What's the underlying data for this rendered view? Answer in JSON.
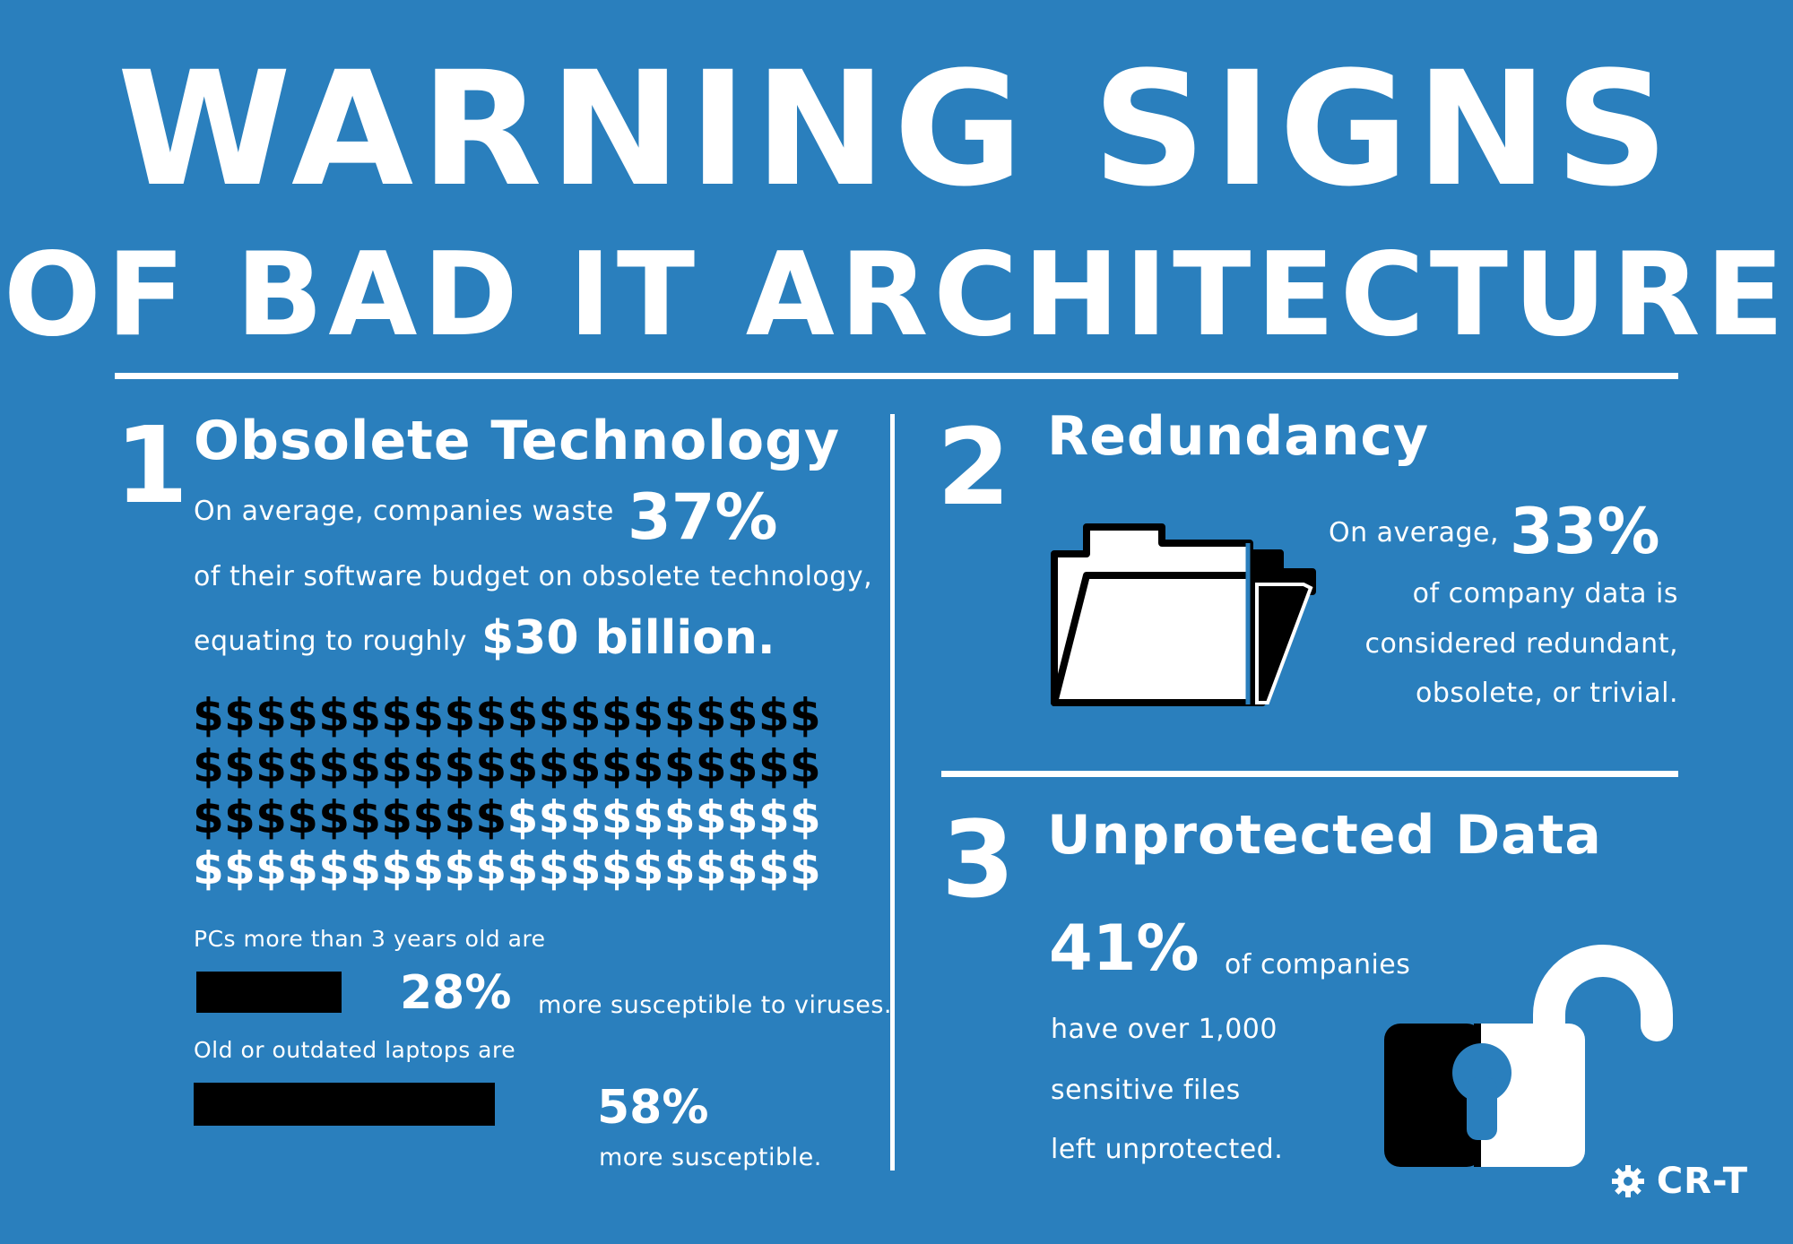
{
  "title": {
    "line1": "WARNING SIGNS",
    "line2": "OF BAD IT ARCHITECTURE"
  },
  "section1": {
    "number": "1",
    "heading": "Obsolete Technology",
    "intro": "On average, companies waste",
    "percent": "37%",
    "line2": "of their software budget on obsolete technology,",
    "line3": "equating to roughly",
    "amount": "$30 billion.",
    "dollar_grid": {
      "symbol": "$",
      "rows": 4,
      "per_row": 20,
      "highlighted_count": 50
    },
    "pcs_label": "PCs more than 3 years old are",
    "pcs_percent": "28%",
    "pcs_tail": "more susceptible to viruses.",
    "pcs_value": 28,
    "laptops_label": "Old or outdated laptops are",
    "laptops_percent": "58%",
    "laptops_tail": "more susceptible.",
    "laptops_value": 58
  },
  "section2": {
    "number": "2",
    "heading": "Redundancy",
    "intro": "On average,",
    "percent": "33%",
    "line1": "of company data is",
    "line2": "considered redundant,",
    "line3": "obsolete, or trivial.",
    "icon": "folder-icon"
  },
  "section3": {
    "number": "3",
    "heading": "Unprotected Data",
    "percent": "41%",
    "tail": "of companies",
    "line1": "have over 1,000",
    "line2": "sensitive files",
    "line3": "left unprotected.",
    "icon": "open-padlock-icon"
  },
  "logo": {
    "text": "CR-T",
    "icon": "gears-icon"
  },
  "colors": {
    "background": "#2a7fbd",
    "text": "#ffffff",
    "accent": "#000000"
  }
}
